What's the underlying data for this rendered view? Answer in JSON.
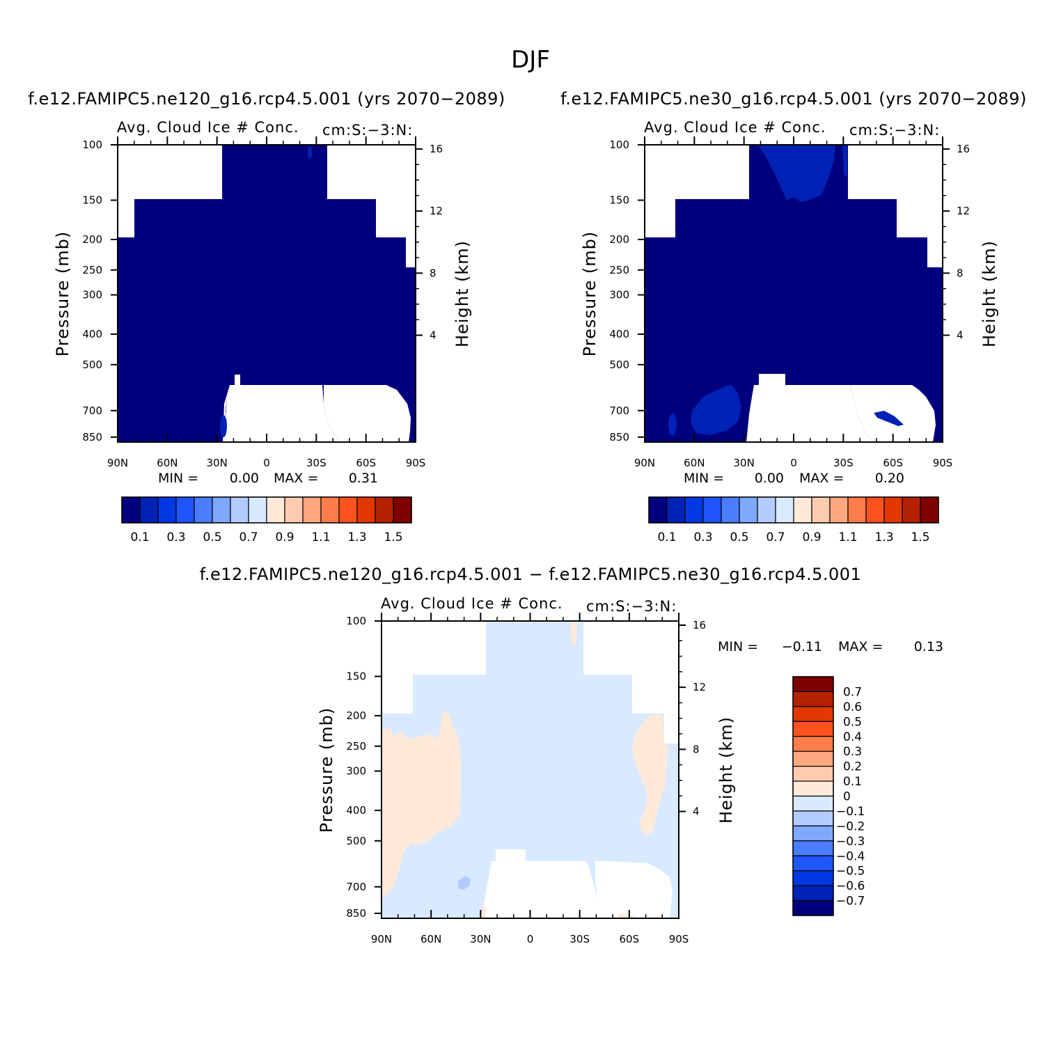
{
  "figure": {
    "title": "DJF",
    "colors": {
      "abs_palette": [
        "#00007f",
        "#0022b4",
        "#0038e2",
        "#1e55ff",
        "#4a7dff",
        "#80a8ff",
        "#b3ccff",
        "#d9e9ff",
        "#ffe9d9",
        "#ffcbb0",
        "#ffa880",
        "#ff7d4a",
        "#ff521e",
        "#e23800",
        "#b42200",
        "#7f0000"
      ],
      "diff_palette": [
        "#00007f",
        "#0022b4",
        "#0038e2",
        "#1e55ff",
        "#4a7dff",
        "#80a8ff",
        "#b3ccff",
        "#d9e9ff",
        "#ffe9d9",
        "#ffcbb0",
        "#ffa880",
        "#ff7d4a",
        "#ff521e",
        "#e23800",
        "#b42200",
        "#7f0000"
      ]
    }
  },
  "panels": [
    {
      "run_title": "f.e12.FAMIPC5.ne120_g16.rcp4.5.001 (yrs 2070−2089)",
      "left_title": "Avg. Cloud Ice # Conc.",
      "right_title": "cm:S:−3:N:",
      "ylabel": "Pressure (mb)",
      "y2label": "Height (km)",
      "min_label": "MIN =",
      "min_value": "0.00",
      "max_label": "MAX =",
      "max_value": "0.31"
    },
    {
      "run_title": "f.e12.FAMIPC5.ne30_g16.rcp4.5.001 (yrs 2070−2089)",
      "left_title": "Avg. Cloud Ice # Conc.",
      "right_title": "cm:S:−3:N:",
      "ylabel": "Pressure (mb)",
      "y2label": "Height (km)",
      "min_label": "MIN =",
      "min_value": "0.00",
      "max_label": "MAX =",
      "max_value": "0.20"
    },
    {
      "run_title": "f.e12.FAMIPC5.ne120_g16.rcp4.5.001 − f.e12.FAMIPC5.ne30_g16.rcp4.5.001",
      "left_title": "Avg. Cloud Ice # Conc.",
      "right_title": "cm:S:−3:N:",
      "ylabel": "Pressure (mb)",
      "y2label": "Height (km)",
      "min_label": "MIN =",
      "min_value": "−0.11",
      "max_label": "MAX =",
      "max_value": "0.13"
    }
  ],
  "axes": {
    "x_ticks": [
      "90N",
      "60N",
      "30N",
      "0",
      "30S",
      "60S",
      "90S"
    ],
    "y_ticks": [
      "100",
      "150",
      "200",
      "250",
      "300",
      "400",
      "500",
      "700",
      "850"
    ],
    "y2_ticks": [
      "16",
      "12",
      "8",
      "4"
    ]
  },
  "colorbars": {
    "abs_labels": [
      "0.1",
      "0.3",
      "0.5",
      "0.7",
      "0.9",
      "1.1",
      "1.3",
      "1.5"
    ],
    "diff_labels": [
      "0.7",
      "0.6",
      "0.5",
      "0.4",
      "0.3",
      "0.2",
      "0.1",
      "0",
      "−0.1",
      "−0.2",
      "−0.3",
      "−0.4",
      "−0.5",
      "−0.6",
      "−0.7"
    ]
  },
  "chart_data": [
    {
      "type": "heatmap",
      "title": "Avg. Cloud Ice # Conc.",
      "units": "cm:S:−3:N:",
      "ylabel": "Pressure (mb)",
      "y2label": "Height (km)",
      "x_ticks": [
        "90N",
        "60N",
        "30N",
        "0",
        "30S",
        "60S",
        "90S"
      ],
      "xlim": [
        -90,
        90
      ],
      "ylim_mb": [
        1000,
        100
      ],
      "log_pressure_axis": true,
      "contour_levels": [
        0.1,
        0.2,
        0.3,
        0.4,
        0.5,
        0.6,
        0.7,
        0.8,
        0.9,
        1.0,
        1.1,
        1.2,
        1.3,
        1.4,
        1.5
      ],
      "min": 0.0,
      "max": 0.31,
      "dominant_bin": "<0.1"
    },
    {
      "type": "heatmap",
      "title": "Avg. Cloud Ice # Conc.",
      "units": "cm:S:−3:N:",
      "ylabel": "Pressure (mb)",
      "y2label": "Height (km)",
      "x_ticks": [
        "90N",
        "60N",
        "30N",
        "0",
        "30S",
        "60S",
        "90S"
      ],
      "xlim": [
        -90,
        90
      ],
      "ylim_mb": [
        1000,
        100
      ],
      "log_pressure_axis": true,
      "contour_levels": [
        0.1,
        0.2,
        0.3,
        0.4,
        0.5,
        0.6,
        0.7,
        0.8,
        0.9,
        1.0,
        1.1,
        1.2,
        1.3,
        1.4,
        1.5
      ],
      "min": 0.0,
      "max": 0.2,
      "dominant_bin": "<0.1"
    },
    {
      "type": "heatmap",
      "title": "Avg. Cloud Ice # Conc.",
      "units": "cm:S:−3:N:",
      "ylabel": "Pressure (mb)",
      "y2label": "Height (km)",
      "x_ticks": [
        "90N",
        "60N",
        "30N",
        "0",
        "30S",
        "60S",
        "90S"
      ],
      "xlim": [
        -90,
        90
      ],
      "ylim_mb": [
        1000,
        100
      ],
      "log_pressure_axis": true,
      "contour_levels": [
        -0.7,
        -0.6,
        -0.5,
        -0.4,
        -0.3,
        -0.2,
        -0.1,
        0,
        0.1,
        0.2,
        0.3,
        0.4,
        0.5,
        0.6,
        0.7
      ],
      "min": -0.11,
      "max": 0.13,
      "dominant_bin": "-0.1 to 0"
    }
  ]
}
